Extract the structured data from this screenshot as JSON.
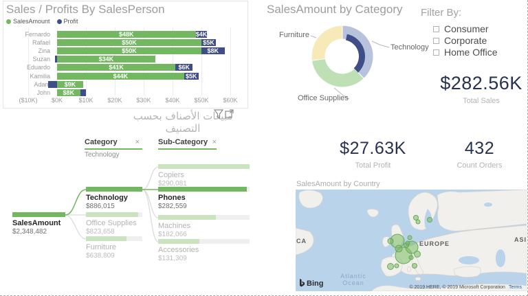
{
  "colors": {
    "green": "#73b761",
    "navy": "#3f4d89",
    "dim_green": "#c9e4bf",
    "track": "#efefef",
    "water": "#b9d3ea",
    "land": "#f2f0ec",
    "bubble_fill": "rgba(122,187,102,0.55)",
    "bubble_stroke": "#69a757",
    "card_text": "#273150"
  },
  "chart_data": [
    {
      "id": "sales-profits-by-salesperson",
      "type": "bar",
      "title": "Sales / Profits By SalesPerson",
      "orientation": "horizontal",
      "categories": [
        "Fernardo",
        "Rafael",
        "Zina",
        "Suzan",
        "Eduardo",
        "Kamilia",
        "Adam",
        "John"
      ],
      "series": [
        {
          "name": "SalesAmount",
          "values_k": [
            48,
            50,
            50,
            34,
            41,
            44,
            9,
            8
          ],
          "labels": [
            "$48K",
            "$50K",
            "$50K",
            "$34K",
            "$41K",
            "$44K",
            "$9K",
            "$8K"
          ]
        },
        {
          "name": "Profit",
          "values_k": [
            4,
            5,
            8,
            -0.7,
            6,
            5,
            -3,
            2
          ],
          "labels": [
            "$4K",
            "$5K",
            "$8K",
            "",
            "$6K",
            "$5K",
            "",
            ""
          ]
        }
      ],
      "x_ticks": [
        {
          "label": "($10K)",
          "k": -10
        },
        {
          "label": "$0K",
          "k": 0
        },
        {
          "label": "$10K",
          "k": 10
        },
        {
          "label": "$20K",
          "k": 20
        },
        {
          "label": "$30K",
          "k": 30
        },
        {
          "label": "$40K",
          "k": 40
        },
        {
          "label": "$50K",
          "k": 50
        },
        {
          "label": "$60K",
          "k": 60
        }
      ],
      "xlim_k": [
        -10,
        60
      ],
      "legend_position": "top-left"
    },
    {
      "id": "salesamount-by-category",
      "type": "pie",
      "title": "SalesAmount by Category",
      "donut": true,
      "slices": [
        {
          "label": "Technology",
          "value": 886015
        },
        {
          "label": "Office Supplies",
          "value": 823658
        },
        {
          "label": "Furniture",
          "value": 638809
        }
      ],
      "slice_colors": [
        "#b9c2dd",
        "#bfdfb5",
        "#f8eab8"
      ],
      "inner_highlight": {
        "start_deg": 12,
        "end_deg": 136
      }
    },
    {
      "id": "decomposition-tree",
      "type": "table",
      "headers": [
        {
          "label": "Category",
          "close": "×",
          "filter_value": "Technology"
        },
        {
          "label": "Sub-Category",
          "close": "×"
        }
      ],
      "nodes": [
        {
          "label": "SalesAmount",
          "value": "$2,348,482",
          "pct": 100,
          "state": "sel"
        },
        {
          "label": "Technology",
          "value": "$886,015",
          "pct": 100,
          "state": "sel"
        },
        {
          "label": "Office Supplies",
          "value": "$823,658",
          "pct": 93,
          "state": "dim"
        },
        {
          "label": "Furniture",
          "value": "$638,809",
          "pct": 72,
          "state": "dim"
        },
        {
          "label": "Copiers",
          "value": "$290,081",
          "pct": 100,
          "state": "dim"
        },
        {
          "label": "Phones",
          "value": "$282,559",
          "pct": 97,
          "state": "sel"
        },
        {
          "label": "Machines",
          "value": "$182,066",
          "pct": 63,
          "state": "dim"
        },
        {
          "label": "Accessories",
          "value": "$131,309",
          "pct": 45,
          "state": "dim"
        }
      ]
    },
    {
      "id": "salesamount-by-country",
      "type": "map",
      "title": "SalesAmount by Country",
      "labels": {
        "left": "CA",
        "region": "EUROPE",
        "right": "ASI",
        "ocean1": "Atlantic",
        "ocean2": "Ocean"
      },
      "bing_label": "Bing",
      "copyright": "© 2019 HERE, © 2019 Microsoft Corporation",
      "terms": "Terms",
      "bubbles": [
        {
          "x": 148,
          "y": 75,
          "r": 10
        },
        {
          "x": 157,
          "y": 96,
          "r": 12
        },
        {
          "x": 169,
          "y": 84,
          "r": 9
        },
        {
          "x": 161,
          "y": 81,
          "r": 3.5
        },
        {
          "x": 166,
          "y": 70,
          "r": 3
        },
        {
          "x": 138,
          "y": 75,
          "r": 4
        },
        {
          "x": 177,
          "y": 94,
          "r": 4.5
        },
        {
          "x": 168,
          "y": 99,
          "r": 3
        },
        {
          "x": 138,
          "y": 112,
          "r": 4.5
        },
        {
          "x": 147,
          "y": 111,
          "r": 3
        },
        {
          "x": 173,
          "y": 111,
          "r": 3.5
        },
        {
          "x": 175,
          "y": 41,
          "r": 3.5
        },
        {
          "x": 178,
          "y": 47,
          "r": 3
        },
        {
          "x": 195,
          "y": 44,
          "r": 3.5
        },
        {
          "x": 150,
          "y": 86,
          "r": 5
        },
        {
          "x": 163,
          "y": 78,
          "r": 3
        }
      ]
    }
  ],
  "filter": {
    "title": "Filter By:",
    "options": [
      {
        "label": "Consumer",
        "checked": false
      },
      {
        "label": "Corporate",
        "checked": false
      },
      {
        "label": "Home Office",
        "checked": false
      }
    ]
  },
  "cards": [
    {
      "id": "total-sales",
      "value": "$282.56K",
      "caption": "Total Sales"
    },
    {
      "id": "total-profit",
      "value": "$27.63K",
      "caption": "Total Profit"
    },
    {
      "id": "count-orders",
      "value": "432",
      "caption": "Count Orders"
    }
  ],
  "middle": {
    "title": "مبيعات الأصناف بحسب التصنيف"
  }
}
